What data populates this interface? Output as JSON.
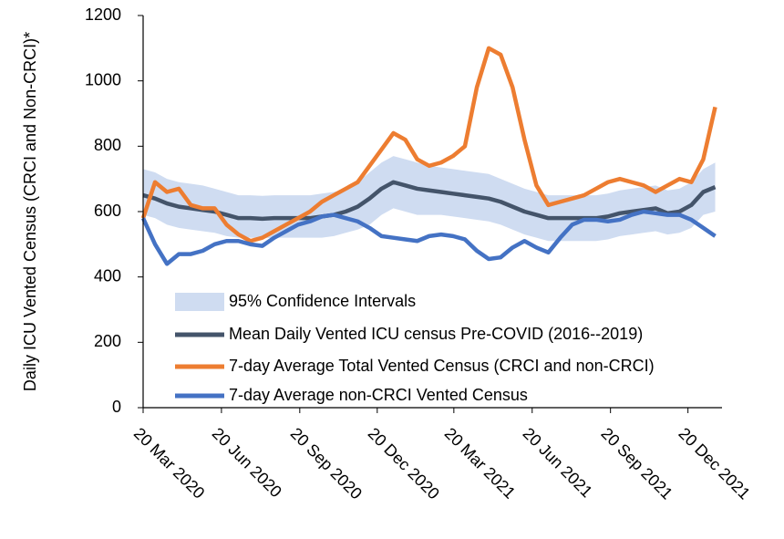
{
  "chart_data": {
    "type": "line",
    "y_label": "Daily ICU Vented Census  (CRCI and Non-CRCI)*",
    "x": [
      "2020-03-20",
      "2020-04-03",
      "2020-04-17",
      "2020-05-01",
      "2020-05-15",
      "2020-05-29",
      "2020-06-12",
      "2020-06-26",
      "2020-07-10",
      "2020-07-24",
      "2020-08-07",
      "2020-08-21",
      "2020-09-04",
      "2020-09-18",
      "2020-10-02",
      "2020-10-16",
      "2020-10-30",
      "2020-11-13",
      "2020-11-27",
      "2020-12-11",
      "2020-12-25",
      "2021-01-08",
      "2021-01-22",
      "2021-02-05",
      "2021-02-19",
      "2021-03-05",
      "2021-03-19",
      "2021-04-02",
      "2021-04-16",
      "2021-04-30",
      "2021-05-14",
      "2021-05-28",
      "2021-06-11",
      "2021-06-25",
      "2021-07-09",
      "2021-07-23",
      "2021-08-06",
      "2021-08-20",
      "2021-09-03",
      "2021-09-17",
      "2021-10-01",
      "2021-10-15",
      "2021-10-29",
      "2021-11-12",
      "2021-11-26",
      "2021-12-10",
      "2021-12-24",
      "2022-01-07",
      "2022-01-21"
    ],
    "xlim": [
      "2020-03-20",
      "2022-01-29"
    ],
    "xticks": [
      {
        "value": "2020-03-20",
        "label": "20 Mar 2020"
      },
      {
        "value": "2020-06-20",
        "label": "20 Jun 2020"
      },
      {
        "value": "2020-09-20",
        "label": "20 Sep 2020"
      },
      {
        "value": "2020-12-20",
        "label": "20 Dec 2020"
      },
      {
        "value": "2021-03-20",
        "label": "20 Mar 2021"
      },
      {
        "value": "2021-06-20",
        "label": "20 Jun 2021"
      },
      {
        "value": "2021-09-20",
        "label": "20 Sep 2021"
      },
      {
        "value": "2021-12-20",
        "label": "20 Dec 2021"
      }
    ],
    "ylim": [
      0,
      1200
    ],
    "yticks": [
      0,
      200,
      400,
      600,
      800,
      1000,
      1200
    ],
    "series": [
      {
        "name": "95% Confidence Intervals",
        "color": "#cfdcf1",
        "lower": [
          590,
          580,
          560,
          550,
          545,
          540,
          535,
          525,
          520,
          520,
          518,
          520,
          520,
          520,
          520,
          520,
          525,
          535,
          545,
          560,
          590,
          610,
          600,
          590,
          590,
          590,
          585,
          580,
          575,
          570,
          560,
          545,
          530,
          520,
          510,
          510,
          510,
          510,
          510,
          515,
          525,
          530,
          535,
          540,
          530,
          535,
          550,
          590,
          600
        ],
        "upper": [
          730,
          720,
          700,
          690,
          685,
          680,
          670,
          660,
          650,
          650,
          648,
          650,
          650,
          650,
          650,
          655,
          660,
          670,
          690,
          720,
          750,
          770,
          760,
          750,
          740,
          735,
          730,
          725,
          720,
          715,
          700,
          685,
          670,
          660,
          650,
          650,
          650,
          650,
          650,
          655,
          665,
          670,
          675,
          680,
          665,
          670,
          690,
          730,
          750
        ]
      },
      {
        "name": "Mean Daily Vented ICU census Pre-COVID (2016--2019)",
        "color": "#44546a",
        "values": [
          650,
          640,
          625,
          615,
          610,
          605,
          600,
          590,
          580,
          580,
          578,
          580,
          580,
          580,
          580,
          585,
          590,
          600,
          615,
          640,
          670,
          690,
          680,
          670,
          665,
          660,
          655,
          650,
          645,
          640,
          630,
          615,
          600,
          590,
          580,
          580,
          580,
          580,
          580,
          585,
          595,
          600,
          605,
          610,
          595,
          600,
          620,
          660,
          675
        ]
      },
      {
        "name": "7-day Average Total Vented Census (CRCI and non-CRCI)",
        "color": "#ed7d31",
        "values": [
          580,
          690,
          660,
          670,
          620,
          610,
          610,
          560,
          530,
          510,
          520,
          540,
          560,
          580,
          600,
          630,
          650,
          670,
          690,
          740,
          790,
          840,
          820,
          760,
          740,
          750,
          770,
          800,
          980,
          1100,
          1080,
          980,
          820,
          680,
          620,
          630,
          640,
          650,
          670,
          690,
          700,
          690,
          680,
          660,
          680,
          700,
          690,
          760,
          920
        ]
      },
      {
        "name": "7-day Average non-CRCI Vented Census",
        "color": "#4472c4",
        "values": [
          580,
          500,
          440,
          470,
          470,
          480,
          500,
          510,
          510,
          500,
          495,
          520,
          540,
          560,
          570,
          585,
          590,
          580,
          570,
          550,
          525,
          520,
          515,
          510,
          525,
          530,
          525,
          515,
          480,
          455,
          460,
          490,
          510,
          490,
          475,
          520,
          560,
          575,
          575,
          570,
          575,
          590,
          600,
          595,
          590,
          590,
          575,
          550,
          525
        ]
      }
    ]
  }
}
